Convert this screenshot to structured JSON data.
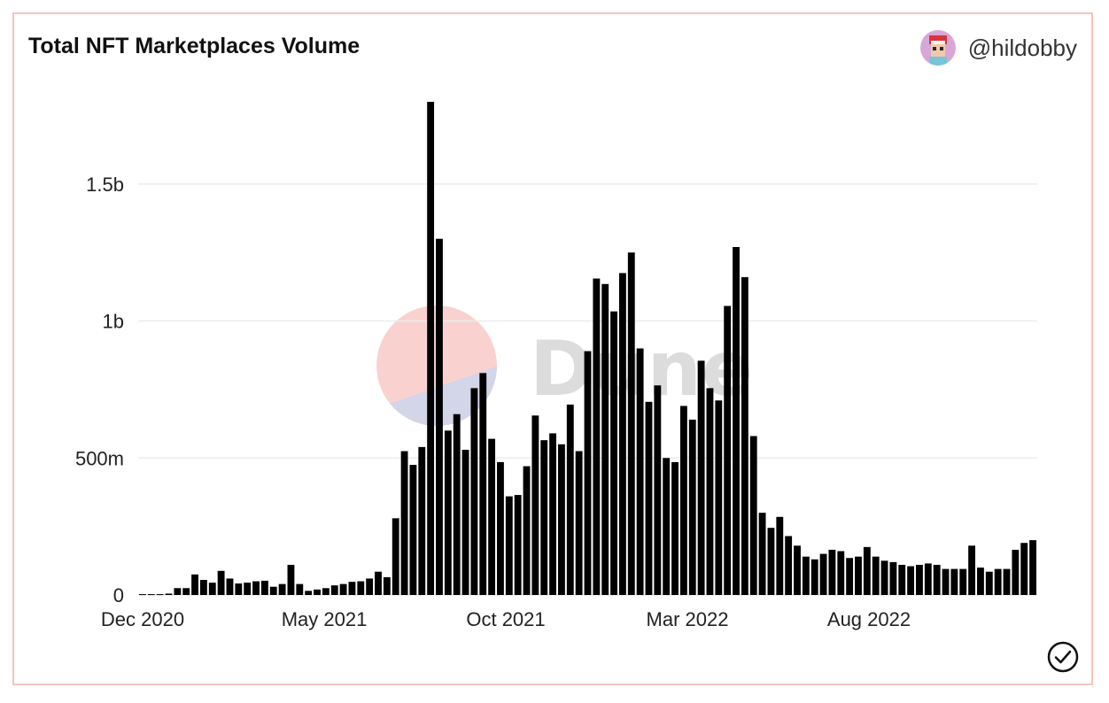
{
  "card": {
    "title": "Total NFT Marketplaces Volume",
    "author": "@hildobby",
    "watermark": "Dune"
  },
  "icons": {
    "avatar": "avatar-icon",
    "verified": "checkmark-circle-icon"
  },
  "colors": {
    "bar": "#000000",
    "border": "#f6c4bd",
    "grid": "#ececec",
    "watermark_red": "#f9d2cf",
    "watermark_blue": "#d3d5e8"
  },
  "chart_data": {
    "type": "bar",
    "title": "Total NFT Marketplaces Volume",
    "xlabel": "",
    "ylabel": "",
    "x_ticks": [
      "Dec 2020",
      "May 2021",
      "Oct 2021",
      "Mar 2022",
      "Aug 2022"
    ],
    "y_ticks": [
      "0",
      "500m",
      "1b",
      "1.5b"
    ],
    "y_tick_values": [
      0,
      500000000,
      1000000000,
      1500000000
    ],
    "ylim": [
      0,
      1800000000
    ],
    "grid": true,
    "values": [
      3000000,
      3000000,
      3000000,
      5000000,
      25000000,
      25000000,
      75000000,
      55000000,
      45000000,
      88000000,
      60000000,
      42000000,
      45000000,
      50000000,
      52000000,
      30000000,
      40000000,
      110000000,
      40000000,
      15000000,
      20000000,
      25000000,
      35000000,
      40000000,
      48000000,
      50000000,
      60000000,
      85000000,
      65000000,
      280000000,
      525000000,
      475000000,
      540000000,
      1800000000,
      1300000000,
      600000000,
      660000000,
      530000000,
      755000000,
      810000000,
      570000000,
      485000000,
      360000000,
      365000000,
      470000000,
      655000000,
      565000000,
      590000000,
      550000000,
      695000000,
      525000000,
      890000000,
      1155000000,
      1135000000,
      1035000000,
      1175000000,
      1250000000,
      900000000,
      705000000,
      765000000,
      500000000,
      485000000,
      690000000,
      640000000,
      855000000,
      755000000,
      710000000,
      1055000000,
      1270000000,
      1160000000,
      580000000,
      300000000,
      245000000,
      285000000,
      215000000,
      180000000,
      140000000,
      130000000,
      150000000,
      165000000,
      160000000,
      135000000,
      140000000,
      175000000,
      140000000,
      125000000,
      120000000,
      110000000,
      105000000,
      110000000,
      115000000,
      110000000,
      95000000,
      95000000,
      95000000,
      180000000,
      100000000,
      85000000,
      95000000,
      95000000,
      165000000,
      190000000,
      200000000
    ]
  }
}
